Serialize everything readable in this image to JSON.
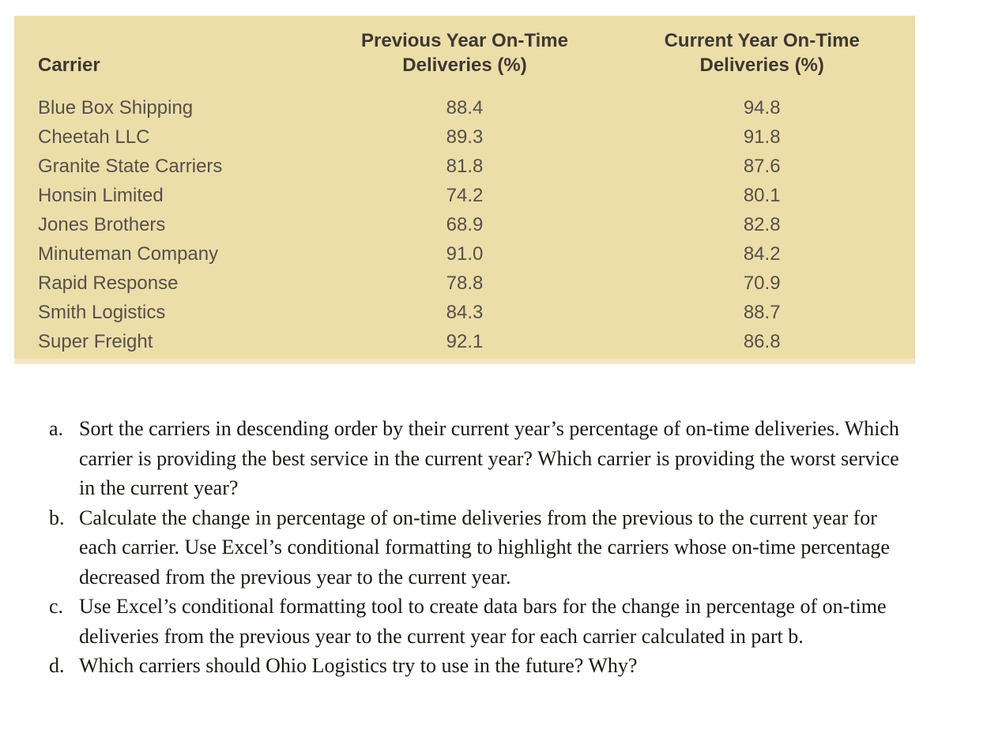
{
  "colors": {
    "table_background": "#ecdea9",
    "table_bottom_edge": "#f2e9c4",
    "header_text": "#3e3831",
    "body_text": "#57504a",
    "question_text": "#1c1712",
    "page_background": "#ffffff"
  },
  "table": {
    "header": {
      "carrier": "Carrier",
      "prev_line1": "Previous Year On-Time",
      "prev_line2": "Deliveries (%)",
      "curr_line1": "Current Year On-Time",
      "curr_line2": "Deliveries (%)"
    },
    "rows": [
      {
        "carrier": "Blue Box Shipping",
        "prev": "88.4",
        "curr": "94.8"
      },
      {
        "carrier": "Cheetah LLC",
        "prev": "89.3",
        "curr": "91.8"
      },
      {
        "carrier": "Granite State Carriers",
        "prev": "81.8",
        "curr": "87.6"
      },
      {
        "carrier": "Honsin Limited",
        "prev": "74.2",
        "curr": "80.1"
      },
      {
        "carrier": "Jones Brothers",
        "prev": "68.9",
        "curr": "82.8"
      },
      {
        "carrier": "Minuteman Company",
        "prev": "91.0",
        "curr": "84.2"
      },
      {
        "carrier": "Rapid Response",
        "prev": "78.8",
        "curr": "70.9"
      },
      {
        "carrier": "Smith Logistics",
        "prev": "84.3",
        "curr": "88.7"
      },
      {
        "carrier": "Super Freight",
        "prev": "92.1",
        "curr": "86.8"
      }
    ]
  },
  "questions": [
    {
      "label": "a.",
      "text": "Sort the carriers in descending order by their current year’s percentage of on-time deliveries. Which carrier is providing the best service in the current year? Which carrier is providing the worst service in the current year?"
    },
    {
      "label": "b.",
      "text": "Calculate the change in percentage of on-time deliveries from the previous to the current year for each carrier. Use Excel’s conditional formatting to highlight the carriers whose on-time percentage decreased from the previous year to the current year."
    },
    {
      "label": "c.",
      "text": "Use Excel’s conditional formatting tool to create data bars for the change in percentage of on-time deliveries from the previous year to the current year for each carrier calculated in part b."
    },
    {
      "label": "d.",
      "text": "Which carriers should Ohio Logistics try to use in the future? Why?"
    }
  ]
}
